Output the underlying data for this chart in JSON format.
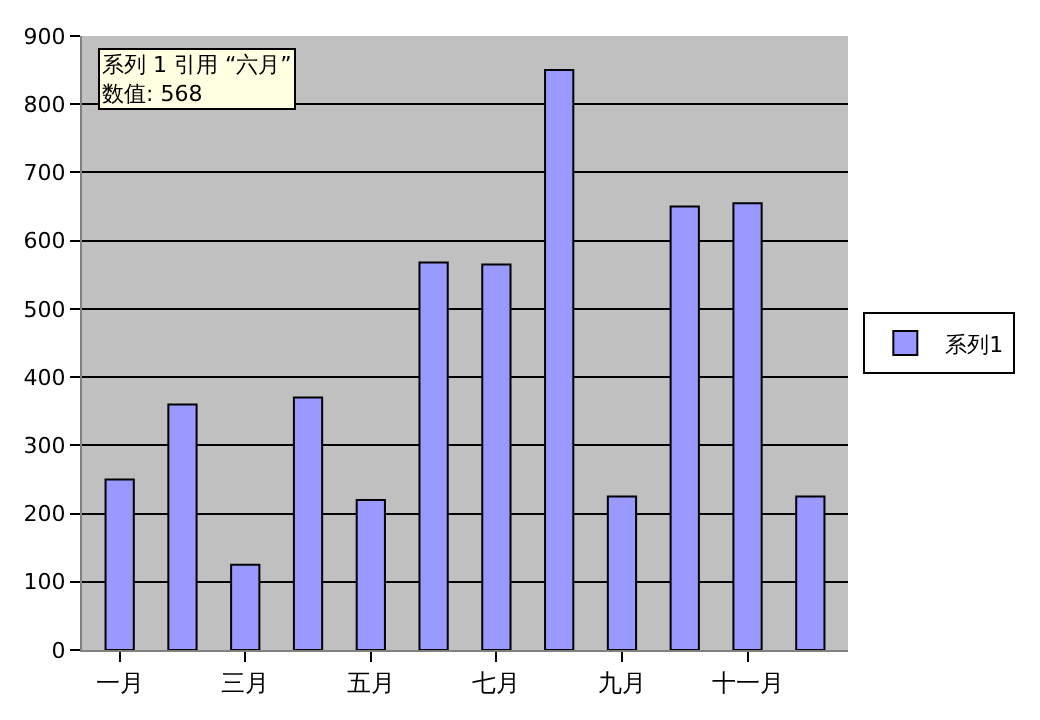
{
  "chart_data": {
    "type": "bar",
    "categories": [
      "一月",
      null,
      "三月",
      null,
      "五月",
      null,
      "七月",
      null,
      "九月",
      null,
      "十一月",
      null
    ],
    "series": [
      {
        "name": "系列1",
        "color": "#9999ff",
        "values": [
          250,
          360,
          125,
          370,
          220,
          568,
          565,
          850,
          225,
          650,
          655,
          225
        ]
      }
    ],
    "ylim": [
      0,
      900
    ],
    "yticks": [
      0,
      100,
      200,
      300,
      400,
      500,
      600,
      700,
      800,
      900
    ],
    "grid": "y",
    "legend": "right",
    "annotations": [
      "系列 1 引用 “六月”\n数值: 568"
    ]
  }
}
